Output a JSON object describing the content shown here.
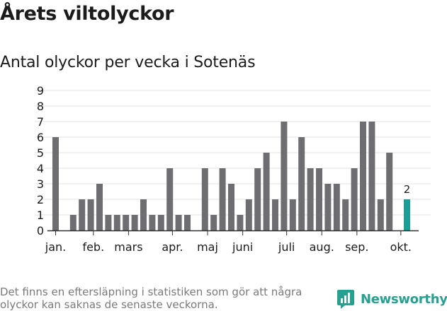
{
  "header": {
    "title": "Årets viltolyckor",
    "subtitle": "Antal olyckor per vecka i Sotenäs"
  },
  "footer": {
    "note": "Det finns en eftersläpning i statistiken som gör att några olyckor kan saknas de senaste veckorna.",
    "brand": "Newsworthy"
  },
  "colors": {
    "bar": "#6e6e72",
    "highlight": "#1a9e95",
    "grid": "#e3e3e3",
    "axis": "#333333",
    "brand": "#27a091"
  },
  "chart_data": {
    "type": "bar",
    "x": [
      1,
      2,
      3,
      4,
      5,
      6,
      7,
      8,
      9,
      10,
      11,
      12,
      13,
      14,
      15,
      16,
      17,
      18,
      19,
      20,
      21,
      22,
      23,
      24,
      25,
      26,
      27,
      28,
      29,
      30,
      31,
      32,
      33,
      34,
      35,
      36,
      37,
      38,
      39,
      40,
      41
    ],
    "values": [
      6,
      0,
      1,
      2,
      2,
      3,
      1,
      1,
      1,
      1,
      2,
      1,
      1,
      4,
      1,
      1,
      0,
      4,
      1,
      4,
      3,
      1,
      2,
      4,
      5,
      2,
      7,
      2,
      6,
      4,
      4,
      3,
      3,
      2,
      4,
      7,
      7,
      2,
      5,
      0,
      2
    ],
    "highlight_index": 40,
    "highlight_label": "2",
    "ylim": [
      0,
      9
    ],
    "yticks": [
      "0",
      "1",
      "2",
      "3",
      "4",
      "5",
      "6",
      "7",
      "8",
      "9"
    ],
    "month_ticks": [
      {
        "label": "jan.",
        "week": 1
      },
      {
        "label": "feb.",
        "week": 5.3
      },
      {
        "label": "mars",
        "week": 9.3
      },
      {
        "label": "apr.",
        "week": 14.3
      },
      {
        "label": "maj",
        "week": 18.3
      },
      {
        "label": "juni",
        "week": 22.3
      },
      {
        "label": "juli",
        "week": 27.3
      },
      {
        "label": "aug.",
        "week": 31.3
      },
      {
        "label": "sep.",
        "week": 35.3
      },
      {
        "label": "okt.",
        "week": 40.3
      }
    ],
    "grid": true
  }
}
